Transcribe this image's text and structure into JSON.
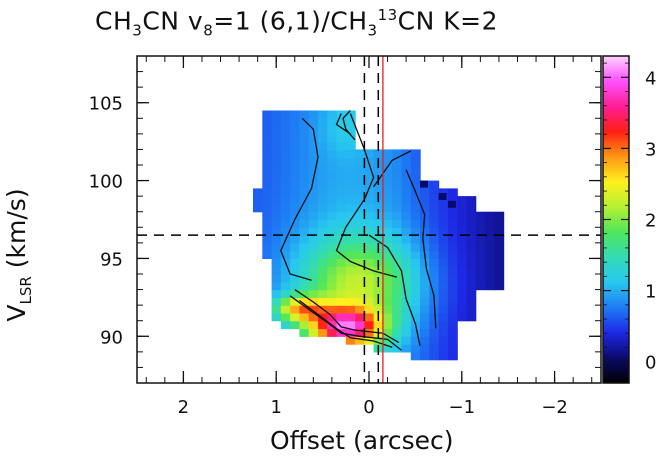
{
  "title": {
    "mol1": "CH",
    "mol1_sub": "3",
    "mol1_tail": "CN v",
    "v_sub": "8",
    "mid": "=1 (6,1)/CH",
    "mol2_sub": "3",
    "iso_sup": "13",
    "tail": "CN K=2"
  },
  "ylabel": {
    "main": "V",
    "sub": "LSR",
    "rest": " (km/s)"
  },
  "xlabel": "Offset (arcsec)",
  "chart_data": {
    "type": "heatmap",
    "xlabel": "Offset (arcsec)",
    "ylabel": "V_LSR (km/s)",
    "xlim": [
      2.5,
      -2.5
    ],
    "ylim": [
      87,
      108
    ],
    "x_ticks": [
      2,
      1,
      0,
      -1,
      -2
    ],
    "y_ticks": [
      90,
      95,
      100,
      105
    ],
    "x_tick_labels": [
      "2",
      "1",
      "0",
      "−1",
      "−2"
    ],
    "y_tick_labels": [
      "90",
      "95",
      "100",
      "105"
    ],
    "colorbar": {
      "range": [
        -0.3,
        4.3
      ],
      "ticks": [
        0,
        1,
        2,
        3,
        4
      ],
      "tick_labels": [
        "0",
        "1",
        "2",
        "3",
        "4"
      ],
      "colormap": [
        "#000000",
        "#0a0a6e",
        "#1e28e6",
        "#1e7cf5",
        "#28c8f0",
        "#32dcb4",
        "#50e65a",
        "#b4f032",
        "#fff01e",
        "#ff9614",
        "#ff1e14",
        "#ff1e96",
        "#ff50ff",
        "#ffd2ff"
      ]
    },
    "reference_lines": [
      {
        "orientation": "vertical",
        "value": 0.05,
        "style": "dashed",
        "color": "#000000"
      },
      {
        "orientation": "vertical",
        "value": -0.1,
        "style": "dashed",
        "color": "#000000"
      },
      {
        "orientation": "vertical",
        "value": -0.15,
        "style": "solid",
        "color": "#e02020"
      },
      {
        "orientation": "horizontal",
        "value": 96.5,
        "style": "dashed",
        "color": "#000000"
      }
    ],
    "grid": false
  }
}
